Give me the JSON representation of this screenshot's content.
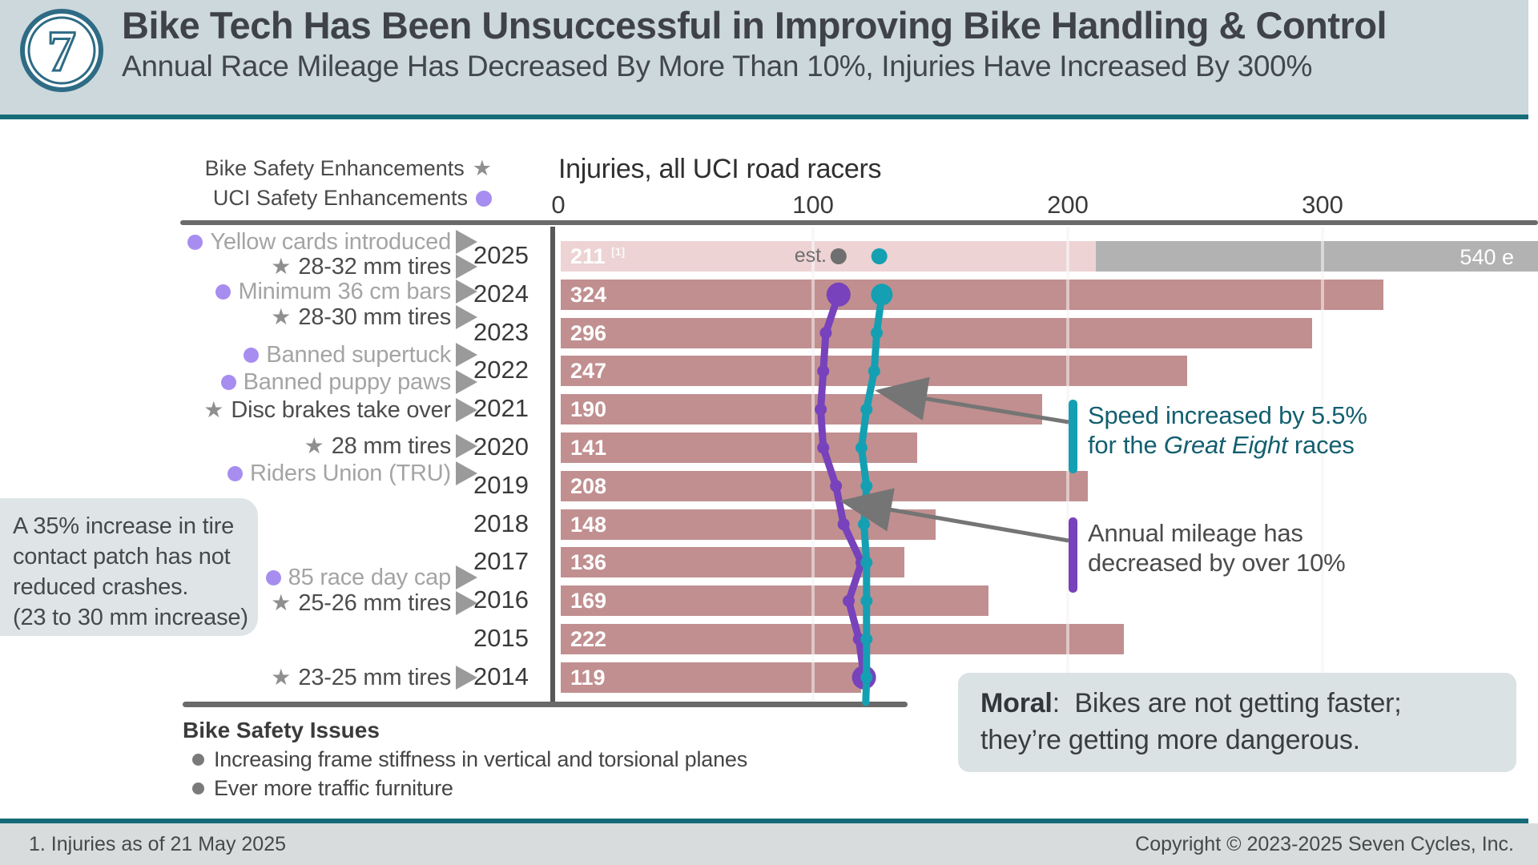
{
  "header": {
    "logo_glyph": "7",
    "title": "Bike Tech Has Been Unsuccessful in Improving Bike Handling & Control",
    "subtitle": "Annual Race Mileage Has Decreased By More Than 10%, Injuries Have Increased By 300%"
  },
  "legend": {
    "bike": {
      "label": "Bike Safety Enhancements",
      "marker": "star"
    },
    "uci": {
      "label": "UCI Safety Enhancements",
      "marker": "dot"
    }
  },
  "chart_data": {
    "type": "bar",
    "title": "Injuries, all UCI road racers",
    "x_ticks": [
      0,
      100,
      200,
      300
    ],
    "xlim": [
      0,
      386
    ],
    "grid": "vertical at 100, 200, 300",
    "bar_color": "#c18f90",
    "rows": [
      {
        "year": 2025,
        "injuries": 211,
        "footnote_marker": "[1]",
        "estimated": true,
        "est_label": "est.",
        "full_year_estimate": 540,
        "full_year_label": "540 e"
      },
      {
        "year": 2024,
        "injuries": 324
      },
      {
        "year": 2023,
        "injuries": 296
      },
      {
        "year": 2022,
        "injuries": 247
      },
      {
        "year": 2021,
        "injuries": 190
      },
      {
        "year": 2020,
        "injuries": 141
      },
      {
        "year": 2019,
        "injuries": 208
      },
      {
        "year": 2018,
        "injuries": 148
      },
      {
        "year": 2017,
        "injuries": 136
      },
      {
        "year": 2016,
        "injuries": 169
      },
      {
        "year": 2015,
        "injuries": 222
      },
      {
        "year": 2014,
        "injuries": 119
      }
    ],
    "series": [
      {
        "name": "Annual race mileage",
        "color": "#7742bb",
        "years": [
          2024,
          2023,
          2022,
          2021,
          2020,
          2019,
          2018,
          2017,
          2016,
          2015,
          2014
        ],
        "x_values": [
          110,
          105,
          104,
          103,
          104,
          109,
          112,
          119,
          114,
          118,
          120
        ]
      },
      {
        "name": "Speed, Great Eight races",
        "color": "#14a0b2",
        "years": [
          2024,
          2023,
          2022,
          2021,
          2020,
          2019,
          2018,
          2017,
          2016,
          2015,
          2014
        ],
        "x_values": [
          127,
          125,
          124,
          121,
          119,
          121,
          120,
          121,
          121,
          121,
          121
        ]
      }
    ],
    "estimate_points_2025": [
      {
        "series": "Annual race mileage",
        "color": "#6f6f6f",
        "x_value": 110
      },
      {
        "series": "Speed, Great Eight races",
        "color": "#14a0b2",
        "x_value": 126
      }
    ],
    "events": [
      {
        "label": "Yellow cards introduced",
        "marker": "dot",
        "year": 2025
      },
      {
        "label": "28-32 mm tires",
        "marker": "star",
        "year": 2025
      },
      {
        "label": "Minimum 36 cm bars",
        "marker": "dot",
        "year": 2024
      },
      {
        "label": "28-30 mm tires",
        "marker": "star",
        "year": 2023
      },
      {
        "label": "Banned supertuck",
        "marker": "dot",
        "year": 2022
      },
      {
        "label": "Banned puppy paws",
        "marker": "dot",
        "year": 2021
      },
      {
        "label": "Disc brakes take over",
        "marker": "star",
        "year": 2021
      },
      {
        "label": "28 mm tires",
        "marker": "star",
        "year": 2020
      },
      {
        "label": "Riders Union (TRU)",
        "marker": "dot",
        "year": 2019
      },
      {
        "label": "85 race day cap",
        "marker": "dot",
        "year": 2017
      },
      {
        "label": "25-26 mm tires",
        "marker": "star",
        "year": 2016
      },
      {
        "label": "23-25 mm tires",
        "marker": "star",
        "year": 2014
      }
    ]
  },
  "annotations": {
    "speed": {
      "line1": "Speed increased by 5.5%",
      "line2_pre": "for the ",
      "line2_italic": "Great Eight",
      "line2_post": " races",
      "color": "#14a0b2"
    },
    "mileage": {
      "line1": "Annual mileage has",
      "line2": "decreased by over 10%",
      "color": "#7742bb"
    },
    "tire_note": {
      "lines": [
        "A 35% increase in tire",
        "contact patch has not",
        "reduced crashes.",
        "(23 to 30 mm increase)"
      ]
    },
    "moral": {
      "label": "Moral",
      "line1_rest": ":  Bikes are not getting faster;",
      "line2": "they’re getting more dangerous."
    }
  },
  "issues": {
    "title": "Bike Safety Issues",
    "items": [
      "Increasing frame stiffness in vertical and torsional planes",
      "Ever more traffic furniture"
    ]
  },
  "footer": {
    "footnote": "1. Injuries as of 21 May 2025",
    "copyright": "Copyright © 2023-2025 Seven Cycles, Inc."
  }
}
